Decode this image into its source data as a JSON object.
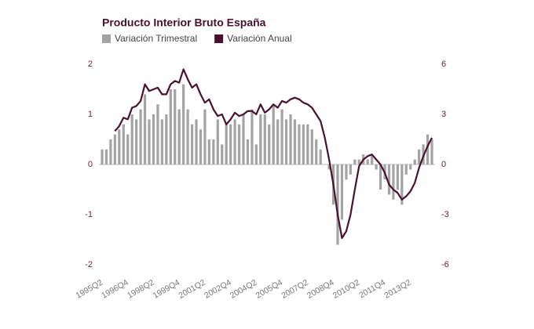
{
  "chart_data": {
    "type": "bar-line",
    "title": "Producto Interior Bruto España",
    "categories": [
      "1995Q2",
      null,
      null,
      null,
      null,
      null,
      "1996Q4",
      null,
      null,
      null,
      null,
      null,
      "1998Q2",
      null,
      null,
      null,
      null,
      null,
      "1999Q4",
      null,
      null,
      null,
      null,
      null,
      "2001Q2",
      null,
      null,
      null,
      null,
      null,
      "2002Q4",
      null,
      null,
      null,
      null,
      null,
      "2004Q2",
      null,
      null,
      null,
      null,
      null,
      "2005Q4",
      null,
      null,
      null,
      null,
      null,
      "2007Q2",
      null,
      null,
      null,
      null,
      null,
      "2008Q4",
      null,
      null,
      null,
      null,
      null,
      "2010Q2",
      null,
      null,
      null,
      null,
      null,
      "2011Q4",
      null,
      null,
      null,
      null,
      null,
      "2013Q2",
      null,
      null,
      null,
      null,
      null
    ],
    "series": [
      {
        "name": "Variación Trimestral",
        "color": "#a3a3a3",
        "type": "bar",
        "values": [
          0.3,
          0.3,
          0.5,
          0.6,
          0.7,
          0.8,
          0.6,
          1.0,
          0.9,
          1.1,
          1.4,
          0.9,
          1.0,
          1.2,
          0.9,
          1.0,
          1.5,
          1.5,
          1.1,
          1.6,
          1.1,
          0.8,
          0.9,
          0.7,
          1.1,
          0.5,
          0.5,
          0.9,
          0.4,
          0.8,
          0.8,
          0.9,
          0.8,
          1.0,
          0.5,
          1.1,
          0.4,
          1.0,
          1.0,
          0.8,
          1.2,
          0.9,
          1.1,
          0.9,
          1.0,
          0.9,
          0.8,
          0.8,
          0.8,
          0.7,
          0.5,
          0.3,
          0.0,
          -0.1,
          -0.8,
          -1.6,
          -1.1,
          -0.3,
          -0.2,
          0.1,
          0.1,
          0.2,
          0.1,
          0.2,
          -0.1,
          -0.5,
          -0.3,
          -0.6,
          -0.7,
          -0.5,
          -0.8,
          -0.2,
          -0.1,
          0.1,
          0.3,
          0.4,
          0.6,
          0.5
        ]
      },
      {
        "name": "Variación Anual",
        "color": "#4a1030",
        "type": "line",
        "axis": "y2",
        "values": [
          null,
          null,
          null,
          2.0,
          2.3,
          2.8,
          2.7,
          3.4,
          3.5,
          3.8,
          4.8,
          4.4,
          4.5,
          4.6,
          4.2,
          4.2,
          4.8,
          5.0,
          4.9,
          5.7,
          5.1,
          4.6,
          4.8,
          4.2,
          3.7,
          3.9,
          3.3,
          2.9,
          3.0,
          2.4,
          2.7,
          3.1,
          2.9,
          3.0,
          3.2,
          3.2,
          3.0,
          3.6,
          3.1,
          3.3,
          3.6,
          3.4,
          3.8,
          3.7,
          3.9,
          4.0,
          3.9,
          3.7,
          3.6,
          3.4,
          3.0,
          2.6,
          1.6,
          0.3,
          -1.2,
          -3.0,
          -4.4,
          -4.0,
          -3.0,
          -1.5,
          -0.1,
          0.3,
          0.5,
          0.6,
          0.3,
          0.0,
          -0.5,
          -1.2,
          -1.5,
          -1.7,
          -2.1,
          -1.9,
          -1.6,
          -1.1,
          -0.2,
          0.5,
          1.1,
          1.6
        ]
      }
    ],
    "ylim": [
      -2,
      2
    ],
    "yticks": [
      -2,
      -1,
      0,
      1,
      2
    ],
    "y2lim": [
      -6,
      6
    ],
    "y2ticks": [
      -6,
      -3,
      0,
      3,
      6
    ],
    "grid": false
  }
}
